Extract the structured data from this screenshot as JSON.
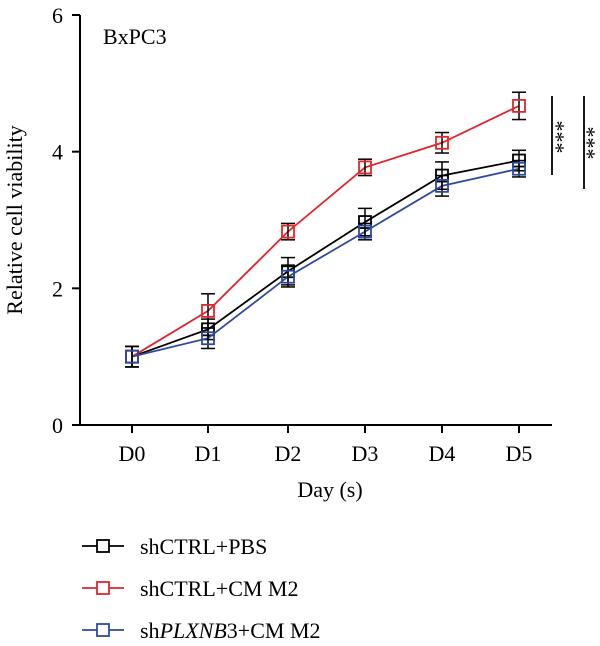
{
  "chart_data": {
    "type": "line",
    "panel_label": "BxPC3",
    "xlabel": "Day (s)",
    "ylabel": "Relative cell viability",
    "categories": [
      "D0",
      "D1",
      "D2",
      "D3",
      "D4",
      "D5"
    ],
    "ylim": [
      0,
      6
    ],
    "yticks": [
      0,
      2,
      4,
      6
    ],
    "grid": false,
    "legend_position": "bottom-left",
    "series": [
      {
        "name": "shCTRL+PBS",
        "legend_prefix": "shCTRL+PBS",
        "legend_italic": "",
        "legend_suffix": "",
        "color": "#000000",
        "values": [
          1.0,
          1.4,
          2.25,
          2.97,
          3.65,
          3.87
        ],
        "errors": [
          0.15,
          0.15,
          0.2,
          0.2,
          0.2,
          0.15
        ]
      },
      {
        "name": "shCTRL+CM M2",
        "legend_prefix": "shCTRL+CM M2",
        "legend_italic": "",
        "legend_suffix": "",
        "color": "#e0262b",
        "values": [
          1.0,
          1.67,
          2.83,
          3.77,
          4.13,
          4.67
        ],
        "errors": [
          0.15,
          0.25,
          0.12,
          0.12,
          0.15,
          0.2
        ]
      },
      {
        "name": "shPLXNB3+CM M2",
        "legend_prefix": "sh",
        "legend_italic": "PLXNB",
        "legend_suffix": "3+CM M2",
        "color": "#2d4a9e",
        "values": [
          1.0,
          1.27,
          2.17,
          2.83,
          3.5,
          3.75
        ],
        "errors": [
          0.15,
          0.15,
          0.15,
          0.12,
          0.15,
          0.12
        ]
      }
    ],
    "significance": [
      "***",
      "***"
    ]
  }
}
